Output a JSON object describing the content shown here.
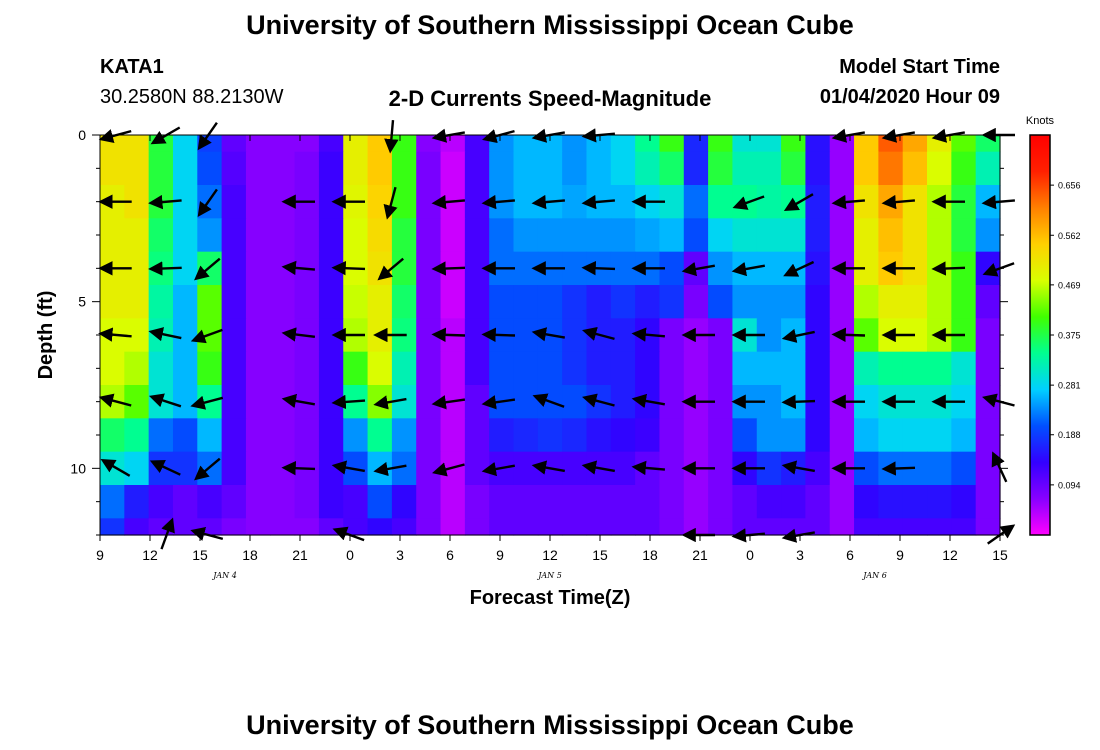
{
  "header": {
    "title": "University of Southern Mississippi Ocean Cube",
    "station": "KATA1",
    "coords": "30.2580N 88.2130W",
    "subtitle": "2-D Currents Speed-Magnitude",
    "model_start_label": "Model Start Time",
    "model_start_value": "01/04/2020 Hour 09"
  },
  "footer": {
    "title": "University of Southern Mississippi Ocean Cube"
  },
  "chart_data": {
    "type": "heatmap",
    "title": "2-D Currents Speed-Magnitude",
    "xlabel": "Forecast Time(Z)",
    "ylabel": "Depth (ft)",
    "x_tick_labels": [
      "9",
      "12",
      "15",
      "18",
      "21",
      "0",
      "3",
      "6",
      "9",
      "12",
      "15",
      "18",
      "21",
      "0",
      "3",
      "6",
      "9",
      "12",
      "15"
    ],
    "x_hours": [
      9,
      12,
      15,
      18,
      21,
      24,
      27,
      30,
      33,
      36,
      39,
      42,
      45,
      48,
      51,
      54,
      57,
      60,
      63
    ],
    "x_start": "01/04/2020 09Z",
    "day_labels": [
      {
        "text": "JAN 4",
        "hour": 16.5
      },
      {
        "text": "JAN 5",
        "hour": 36
      },
      {
        "text": "JAN 6",
        "hour": 55.5
      }
    ],
    "y_ticks": [
      0,
      5,
      10
    ],
    "y_tick_labels": [
      "0",
      "5",
      "10"
    ],
    "ylim": [
      0,
      12
    ],
    "y_inverted": true,
    "colorbar": {
      "title": "Knots",
      "ticks": [
        0.656,
        0.562,
        0.469,
        0.375,
        0.281,
        0.188,
        0.094
      ],
      "tick_labels": [
        "0.656",
        "0.562",
        "0.469",
        "0.375",
        "0.281",
        "0.188",
        "0.094"
      ],
      "range": [
        0,
        0.75
      ],
      "colors": [
        "#ff00ff",
        "#8800ff",
        "#3300ff",
        "#0050ff",
        "#00d0ff",
        "#00ff90",
        "#40ff00",
        "#d8ff00",
        "#ffd000",
        "#ff8000",
        "#ff2000",
        "#ff0000"
      ]
    },
    "depths": [
      0,
      1,
      2,
      3,
      4,
      5,
      6,
      7,
      8,
      9,
      10,
      11,
      12
    ],
    "speed_grid": [
      [
        0.52,
        0.52,
        0.38,
        0.28,
        0.19,
        0.1,
        0.07,
        0.07,
        0.07,
        0.12,
        0.5,
        0.55,
        0.4,
        0.07,
        0.04,
        0.12,
        0.24,
        0.26,
        0.26,
        0.24,
        0.26,
        0.28,
        0.34,
        0.4,
        0.17,
        0.4,
        0.3,
        0.3,
        0.4,
        0.15,
        0.06,
        0.55,
        0.64,
        0.58,
        0.5,
        0.42,
        0.36
      ],
      [
        0.52,
        0.52,
        0.38,
        0.28,
        0.2,
        0.11,
        0.07,
        0.07,
        0.08,
        0.13,
        0.5,
        0.55,
        0.4,
        0.08,
        0.03,
        0.12,
        0.24,
        0.26,
        0.26,
        0.24,
        0.26,
        0.28,
        0.32,
        0.36,
        0.17,
        0.38,
        0.32,
        0.32,
        0.38,
        0.15,
        0.06,
        0.55,
        0.62,
        0.56,
        0.48,
        0.4,
        0.32
      ],
      [
        0.5,
        0.52,
        0.38,
        0.28,
        0.22,
        0.12,
        0.07,
        0.07,
        0.08,
        0.13,
        0.49,
        0.54,
        0.4,
        0.08,
        0.03,
        0.12,
        0.24,
        0.26,
        0.26,
        0.25,
        0.26,
        0.26,
        0.28,
        0.3,
        0.22,
        0.34,
        0.34,
        0.33,
        0.34,
        0.16,
        0.06,
        0.52,
        0.58,
        0.52,
        0.46,
        0.38,
        0.26
      ],
      [
        0.5,
        0.5,
        0.36,
        0.28,
        0.24,
        0.12,
        0.07,
        0.07,
        0.08,
        0.13,
        0.48,
        0.53,
        0.38,
        0.08,
        0.03,
        0.12,
        0.22,
        0.24,
        0.24,
        0.24,
        0.24,
        0.24,
        0.25,
        0.26,
        0.2,
        0.28,
        0.3,
        0.3,
        0.3,
        0.16,
        0.06,
        0.5,
        0.56,
        0.52,
        0.46,
        0.38,
        0.24
      ],
      [
        0.5,
        0.5,
        0.35,
        0.28,
        0.36,
        0.12,
        0.07,
        0.07,
        0.08,
        0.13,
        0.48,
        0.52,
        0.38,
        0.08,
        0.03,
        0.12,
        0.22,
        0.22,
        0.22,
        0.22,
        0.22,
        0.22,
        0.22,
        0.2,
        0.1,
        0.24,
        0.26,
        0.26,
        0.26,
        0.15,
        0.06,
        0.5,
        0.55,
        0.52,
        0.46,
        0.4,
        0.14
      ],
      [
        0.5,
        0.5,
        0.33,
        0.26,
        0.42,
        0.12,
        0.07,
        0.07,
        0.08,
        0.13,
        0.47,
        0.5,
        0.36,
        0.08,
        0.03,
        0.12,
        0.2,
        0.2,
        0.2,
        0.18,
        0.16,
        0.18,
        0.16,
        0.18,
        0.08,
        0.2,
        0.24,
        0.24,
        0.24,
        0.14,
        0.06,
        0.46,
        0.5,
        0.5,
        0.46,
        0.4,
        0.1
      ],
      [
        0.48,
        0.48,
        0.32,
        0.26,
        0.42,
        0.12,
        0.07,
        0.07,
        0.08,
        0.13,
        0.46,
        0.5,
        0.35,
        0.08,
        0.04,
        0.12,
        0.2,
        0.2,
        0.2,
        0.18,
        0.16,
        0.16,
        0.14,
        0.08,
        0.06,
        0.08,
        0.3,
        0.24,
        0.26,
        0.14,
        0.06,
        0.42,
        0.48,
        0.48,
        0.46,
        0.4,
        0.08
      ],
      [
        0.48,
        0.46,
        0.3,
        0.26,
        0.4,
        0.12,
        0.07,
        0.07,
        0.08,
        0.13,
        0.4,
        0.48,
        0.32,
        0.08,
        0.04,
        0.12,
        0.2,
        0.2,
        0.2,
        0.18,
        0.16,
        0.16,
        0.14,
        0.08,
        0.06,
        0.08,
        0.26,
        0.26,
        0.26,
        0.14,
        0.06,
        0.32,
        0.34,
        0.34,
        0.34,
        0.3,
        0.08
      ],
      [
        0.46,
        0.42,
        0.3,
        0.26,
        0.34,
        0.12,
        0.07,
        0.07,
        0.08,
        0.13,
        0.34,
        0.44,
        0.3,
        0.08,
        0.04,
        0.1,
        0.2,
        0.2,
        0.2,
        0.2,
        0.18,
        0.16,
        0.14,
        0.08,
        0.06,
        0.08,
        0.24,
        0.24,
        0.26,
        0.14,
        0.06,
        0.28,
        0.3,
        0.3,
        0.3,
        0.28,
        0.08
      ],
      [
        0.36,
        0.34,
        0.22,
        0.2,
        0.26,
        0.12,
        0.07,
        0.07,
        0.08,
        0.13,
        0.24,
        0.34,
        0.24,
        0.08,
        0.04,
        0.1,
        0.16,
        0.17,
        0.18,
        0.17,
        0.15,
        0.14,
        0.13,
        0.08,
        0.06,
        0.08,
        0.2,
        0.24,
        0.24,
        0.14,
        0.06,
        0.26,
        0.28,
        0.28,
        0.28,
        0.26,
        0.08
      ],
      [
        0.3,
        0.28,
        0.18,
        0.18,
        0.22,
        0.12,
        0.07,
        0.07,
        0.08,
        0.13,
        0.2,
        0.26,
        0.22,
        0.08,
        0.04,
        0.1,
        0.12,
        0.12,
        0.12,
        0.12,
        0.12,
        0.12,
        0.1,
        0.08,
        0.06,
        0.08,
        0.14,
        0.18,
        0.16,
        0.12,
        0.06,
        0.2,
        0.22,
        0.22,
        0.22,
        0.2,
        0.08
      ],
      [
        0.22,
        0.16,
        0.12,
        0.1,
        0.12,
        0.1,
        0.07,
        0.07,
        0.08,
        0.13,
        0.12,
        0.2,
        0.14,
        0.08,
        0.04,
        0.08,
        0.1,
        0.1,
        0.1,
        0.1,
        0.1,
        0.1,
        0.1,
        0.08,
        0.06,
        0.08,
        0.1,
        0.12,
        0.12,
        0.1,
        0.06,
        0.14,
        0.15,
        0.15,
        0.15,
        0.14,
        0.08
      ],
      [
        0.18,
        0.12,
        0.1,
        0.1,
        0.1,
        0.08,
        0.07,
        0.07,
        0.07,
        0.1,
        0.12,
        0.14,
        0.12,
        0.08,
        0.04,
        0.08,
        0.1,
        0.1,
        0.1,
        0.1,
        0.1,
        0.1,
        0.1,
        0.08,
        0.06,
        0.08,
        0.1,
        0.1,
        0.1,
        0.1,
        0.06,
        0.12,
        0.12,
        0.12,
        0.12,
        0.12,
        0.08
      ]
    ],
    "arrow_hours": [
      10,
      13,
      15.5,
      18,
      21,
      24,
      26.5,
      30,
      33,
      36,
      39,
      42,
      45,
      48,
      51,
      54,
      57,
      60,
      63
    ],
    "arrow_depths": [
      0,
      2,
      4,
      6,
      8,
      10,
      12
    ],
    "arrow_dirs_deg": [
      [
        195,
        210,
        235,
        null,
        null,
        null,
        265,
        190,
        195,
        190,
        185,
        null,
        null,
        null,
        null,
        190,
        190,
        190,
        180
      ],
      [
        180,
        185,
        235,
        null,
        180,
        180,
        255,
        185,
        185,
        185,
        185,
        180,
        null,
        200,
        210,
        185,
        185,
        180,
        185
      ],
      [
        180,
        182,
        220,
        null,
        175,
        178,
        220,
        182,
        180,
        180,
        178,
        180,
        190,
        190,
        205,
        180,
        180,
        182,
        200
      ],
      [
        175,
        168,
        200,
        null,
        173,
        180,
        180,
        178,
        178,
        170,
        165,
        175,
        180,
        180,
        192,
        178,
        180,
        180,
        null
      ],
      [
        165,
        162,
        195,
        null,
        170,
        184,
        190,
        188,
        188,
        160,
        165,
        170,
        180,
        180,
        182,
        180,
        180,
        180,
        165
      ],
      [
        150,
        155,
        220,
        null,
        178,
        170,
        190,
        195,
        190,
        170,
        170,
        175,
        180,
        180,
        170,
        180,
        182,
        null,
        115
      ],
      [
        null,
        70,
        165,
        null,
        null,
        160,
        null,
        null,
        null,
        null,
        null,
        null,
        180,
        185,
        190,
        null,
        null,
        null,
        35
      ]
    ],
    "grid": false,
    "legend": "none"
  }
}
